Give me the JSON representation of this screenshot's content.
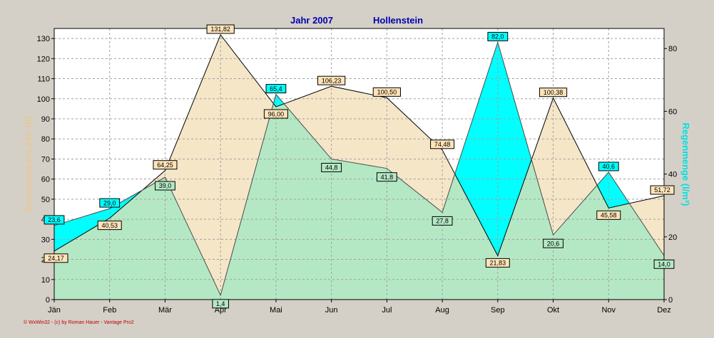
{
  "chart_data": {
    "type": "area",
    "title_left": "Jahr  2007",
    "title_right": "Hollenstein",
    "categories": [
      "Jän",
      "Feb",
      "Mär",
      "Apr",
      "Mai",
      "Jun",
      "Jul",
      "Aug",
      "Sep",
      "Okt",
      "Nov",
      "Dez"
    ],
    "ylabel_left": "Sonnenschein-Zeit  (h)",
    "ylabel_right": "Regenmenge  (l/m²)",
    "ylim_left": [
      0,
      135
    ],
    "yticks_left": [
      0,
      10,
      20,
      30,
      40,
      50,
      60,
      70,
      80,
      90,
      100,
      110,
      120,
      130
    ],
    "ylim_right": [
      0,
      86.4
    ],
    "yticks_right": [
      0,
      20,
      40,
      60,
      80
    ],
    "grid": true,
    "series": [
      {
        "name": "Sonnenschein-Zeit",
        "axis": "left",
        "values": [
          24.17,
          40.53,
          64.25,
          131.82,
          96.0,
          106.23,
          100.5,
          74.48,
          21.83,
          100.38,
          45.58,
          51.72
        ],
        "labels": [
          "24,17",
          "40,53",
          "64,25",
          "131,82",
          "96,00",
          "106,23",
          "100,50",
          "74,48",
          "21,83",
          "100,38",
          "45,58",
          "51,72"
        ]
      },
      {
        "name": "Regenmenge",
        "axis": "right",
        "values": [
          23.6,
          29.0,
          39.0,
          1.4,
          65.4,
          44.8,
          41.8,
          27.8,
          82.0,
          20.6,
          40.6,
          14.0
        ],
        "labels": [
          "23,6",
          "29,0",
          "39,0",
          "1,4",
          "65,4",
          "44,8",
          "41,8",
          "27,8",
          "82,0",
          "20,6",
          "40,6",
          "14,0"
        ]
      }
    ],
    "colors": {
      "sun_fill": "#f5e6c8",
      "rain_fill": "#00ffff",
      "overlap_fill": "#b4e8c4",
      "sun_label_bg": "#ffe4b8",
      "rain_label_bg": "#00ffff",
      "overlap_label_bg": "#b4e8c4",
      "left_axis_label": "#e8c896",
      "right_axis_label": "#00e0e0",
      "title": "#0000b0",
      "plot_bg": "#ffffff"
    },
    "credit": "© WxWin32  -  (c) by Roman Hauer - Vantage Pro2"
  }
}
